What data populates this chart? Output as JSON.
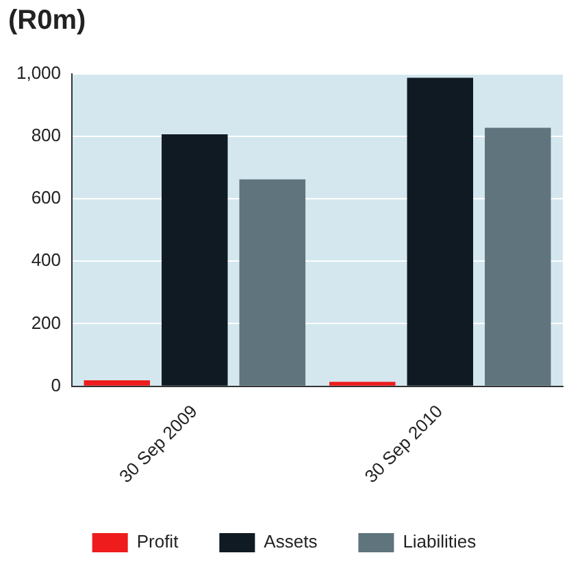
{
  "chart_data": {
    "type": "bar",
    "title": "(R0m)",
    "categories": [
      "30 Sep 2009",
      "30 Sep 2010"
    ],
    "series": [
      {
        "name": "Profit",
        "color": "#ee1c1c",
        "values": [
          19,
          14
        ]
      },
      {
        "name": "Assets",
        "color": "#0f1a22",
        "values": [
          806,
          987
        ]
      },
      {
        "name": "Liabilities",
        "color": "#5f747c",
        "values": [
          662,
          827
        ]
      }
    ],
    "ylim": [
      0,
      1000
    ],
    "yticks": [
      0,
      200,
      400,
      600,
      800,
      {
        "value": 1000,
        "label": "1,000"
      }
    ],
    "grid": "y",
    "legend": "bottom"
  }
}
